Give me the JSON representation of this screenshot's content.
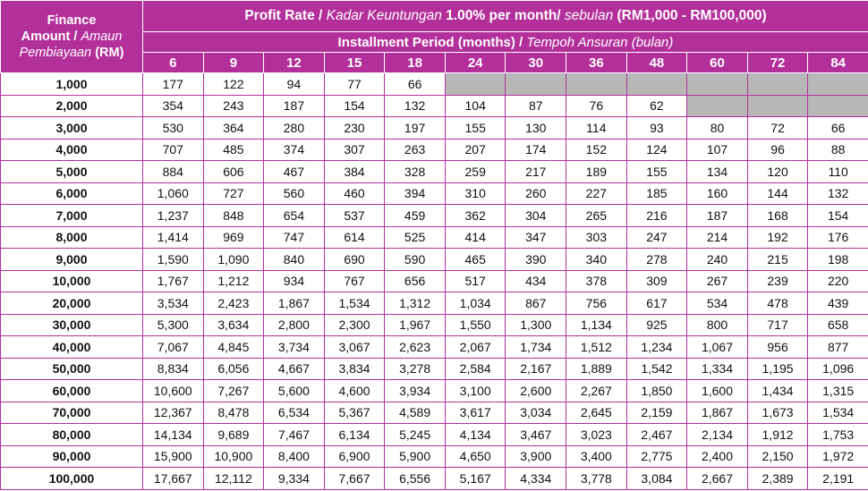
{
  "header": {
    "amount_line1": "Finance",
    "amount_line2": "Amount /",
    "amount_line2_italic": "Amaun",
    "amount_line3_italic": "Pembiayaan",
    "amount_line3": "(RM)",
    "rate_prefix": "Profit Rate /",
    "rate_italic": "Kadar Keuntungan",
    "rate_mid": "1.00% per month/",
    "rate_italic2": "sebulan",
    "rate_suffix": "(RM1,000 - RM100,000)",
    "period_prefix": "Installment Period (months) /",
    "period_italic": "Tempoh Ansuran (bulan)",
    "months": [
      "6",
      "9",
      "12",
      "15",
      "18",
      "24",
      "30",
      "36",
      "48",
      "60",
      "72",
      "84"
    ]
  },
  "rows": [
    {
      "amount": "1,000",
      "values": [
        "177",
        "122",
        "94",
        "77",
        "66",
        null,
        null,
        null,
        null,
        null,
        null,
        null
      ]
    },
    {
      "amount": "2,000",
      "values": [
        "354",
        "243",
        "187",
        "154",
        "132",
        "104",
        "87",
        "76",
        "62",
        null,
        null,
        null
      ]
    },
    {
      "amount": "3,000",
      "values": [
        "530",
        "364",
        "280",
        "230",
        "197",
        "155",
        "130",
        "114",
        "93",
        "80",
        "72",
        "66"
      ]
    },
    {
      "amount": "4,000",
      "values": [
        "707",
        "485",
        "374",
        "307",
        "263",
        "207",
        "174",
        "152",
        "124",
        "107",
        "96",
        "88"
      ]
    },
    {
      "amount": "5,000",
      "values": [
        "884",
        "606",
        "467",
        "384",
        "328",
        "259",
        "217",
        "189",
        "155",
        "134",
        "120",
        "110"
      ]
    },
    {
      "amount": "6,000",
      "values": [
        "1,060",
        "727",
        "560",
        "460",
        "394",
        "310",
        "260",
        "227",
        "185",
        "160",
        "144",
        "132"
      ]
    },
    {
      "amount": "7,000",
      "values": [
        "1,237",
        "848",
        "654",
        "537",
        "459",
        "362",
        "304",
        "265",
        "216",
        "187",
        "168",
        "154"
      ]
    },
    {
      "amount": "8,000",
      "values": [
        "1,414",
        "969",
        "747",
        "614",
        "525",
        "414",
        "347",
        "303",
        "247",
        "214",
        "192",
        "176"
      ]
    },
    {
      "amount": "9,000",
      "values": [
        "1,590",
        "1,090",
        "840",
        "690",
        "590",
        "465",
        "390",
        "340",
        "278",
        "240",
        "215",
        "198"
      ]
    },
    {
      "amount": "10,000",
      "values": [
        "1,767",
        "1,212",
        "934",
        "767",
        "656",
        "517",
        "434",
        "378",
        "309",
        "267",
        "239",
        "220"
      ]
    },
    {
      "amount": "20,000",
      "values": [
        "3,534",
        "2,423",
        "1,867",
        "1,534",
        "1,312",
        "1,034",
        "867",
        "756",
        "617",
        "534",
        "478",
        "439"
      ]
    },
    {
      "amount": "30,000",
      "values": [
        "5,300",
        "3,634",
        "2,800",
        "2,300",
        "1,967",
        "1,550",
        "1,300",
        "1,134",
        "925",
        "800",
        "717",
        "658"
      ]
    },
    {
      "amount": "40,000",
      "values": [
        "7,067",
        "4,845",
        "3,734",
        "3,067",
        "2,623",
        "2,067",
        "1,734",
        "1,512",
        "1,234",
        "1,067",
        "956",
        "877"
      ]
    },
    {
      "amount": "50,000",
      "values": [
        "8,834",
        "6,056",
        "4,667",
        "3,834",
        "3,278",
        "2,584",
        "2,167",
        "1,889",
        "1,542",
        "1,334",
        "1,195",
        "1,096"
      ]
    },
    {
      "amount": "60,000",
      "values": [
        "10,600",
        "7,267",
        "5,600",
        "4,600",
        "3,934",
        "3,100",
        "2,600",
        "2,267",
        "1,850",
        "1,600",
        "1,434",
        "1,315"
      ]
    },
    {
      "amount": "70,000",
      "values": [
        "12,367",
        "8,478",
        "6,534",
        "5,367",
        "4,589",
        "3,617",
        "3,034",
        "2,645",
        "2,159",
        "1,867",
        "1,673",
        "1,534"
      ]
    },
    {
      "amount": "80,000",
      "values": [
        "14,134",
        "9,689",
        "7,467",
        "6,134",
        "5,245",
        "4,134",
        "3,467",
        "3,023",
        "2,467",
        "2,134",
        "1,912",
        "1,753"
      ]
    },
    {
      "amount": "90,000",
      "values": [
        "15,900",
        "10,900",
        "8,400",
        "6,900",
        "5,900",
        "4,650",
        "3,900",
        "3,400",
        "2,775",
        "2,400",
        "2,150",
        "1,972"
      ]
    },
    {
      "amount": "100,000",
      "values": [
        "17,667",
        "12,112",
        "9,334",
        "7,667",
        "6,556",
        "5,167",
        "4,334",
        "3,778",
        "3,084",
        "2,667",
        "2,389",
        "2,191"
      ]
    }
  ],
  "colors": {
    "header_bg": "#b3309b",
    "header_text": "#ffffff",
    "grid_line": "#b3309b",
    "unavailable_cell": "#b7b7b7"
  }
}
